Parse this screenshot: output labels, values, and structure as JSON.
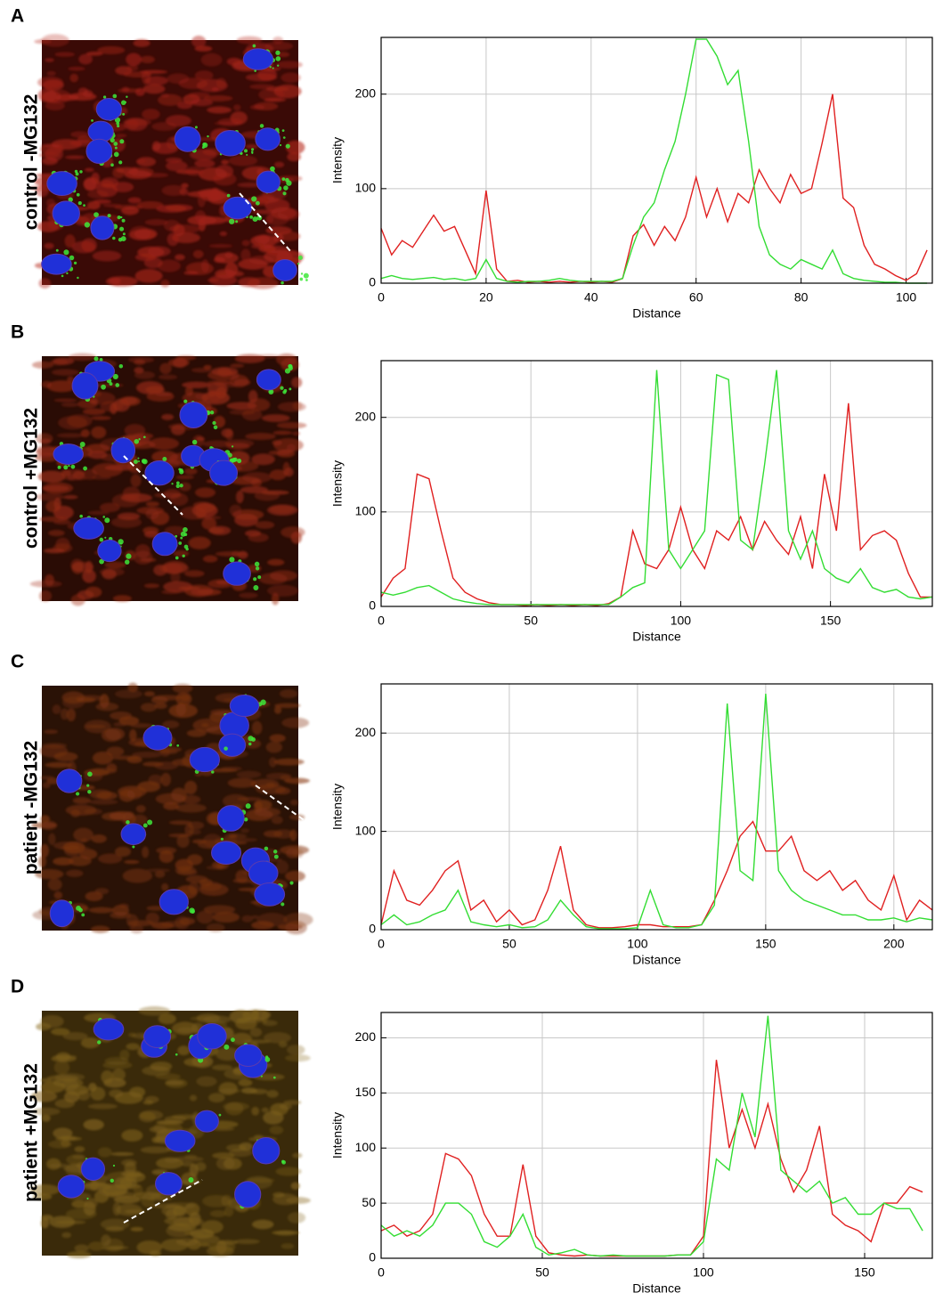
{
  "chart_data": [
    {
      "type": "line",
      "panel": "A",
      "sample": "control -MG132",
      "x_label": "Distance",
      "y_label": "Intensity",
      "x": [
        0,
        2,
        4,
        6,
        8,
        10,
        12,
        14,
        16,
        18,
        20,
        22,
        24,
        26,
        28,
        30,
        32,
        34,
        36,
        38,
        40,
        42,
        44,
        46,
        48,
        50,
        52,
        54,
        56,
        58,
        60,
        62,
        64,
        66,
        68,
        70,
        72,
        74,
        76,
        78,
        80,
        82,
        84,
        86,
        88,
        90,
        92,
        94,
        96,
        98,
        100,
        102,
        104
      ],
      "series": [
        {
          "color": "#e02020",
          "values": [
            58,
            30,
            45,
            38,
            55,
            72,
            55,
            60,
            35,
            10,
            98,
            15,
            2,
            3,
            1,
            2,
            1,
            2,
            1,
            2,
            1,
            2,
            1,
            5,
            50,
            62,
            40,
            60,
            45,
            70,
            112,
            70,
            100,
            65,
            95,
            85,
            120,
            100,
            85,
            115,
            95,
            100,
            148,
            200,
            90,
            80,
            40,
            20,
            15,
            8,
            3,
            10,
            35
          ]
        },
        {
          "color": "#33dd33",
          "values": [
            5,
            8,
            5,
            4,
            5,
            6,
            4,
            5,
            3,
            5,
            25,
            5,
            2,
            1,
            2,
            2,
            3,
            5,
            3,
            2,
            2,
            2,
            2,
            5,
            40,
            70,
            85,
            120,
            150,
            200,
            258,
            258,
            240,
            210,
            225,
            150,
            60,
            30,
            20,
            15,
            25,
            20,
            15,
            35,
            10,
            5,
            3,
            2,
            1,
            1,
            0,
            0,
            0
          ]
        }
      ],
      "xlim": [
        0,
        105
      ],
      "ylim": [
        0,
        260
      ],
      "xticks": [
        0,
        20,
        40,
        60,
        80,
        100
      ],
      "yticks": [
        0,
        100,
        200
      ],
      "grid": true
    },
    {
      "type": "line",
      "panel": "B",
      "sample": "control +MG132",
      "x_label": "Distance",
      "y_label": "Intensity",
      "x": [
        0,
        4,
        8,
        12,
        16,
        20,
        24,
        28,
        32,
        36,
        40,
        44,
        48,
        52,
        56,
        60,
        64,
        68,
        72,
        76,
        80,
        84,
        88,
        92,
        96,
        100,
        104,
        108,
        112,
        116,
        120,
        124,
        128,
        132,
        136,
        140,
        144,
        148,
        152,
        156,
        160,
        164,
        168,
        172,
        176,
        180,
        184
      ],
      "series": [
        {
          "color": "#e02020",
          "values": [
            10,
            30,
            40,
            140,
            135,
            80,
            30,
            15,
            8,
            4,
            2,
            2,
            1,
            2,
            1,
            2,
            1,
            2,
            1,
            3,
            10,
            80,
            45,
            40,
            60,
            105,
            60,
            40,
            80,
            70,
            95,
            60,
            90,
            70,
            55,
            95,
            40,
            140,
            80,
            215,
            60,
            75,
            80,
            70,
            35,
            10,
            10
          ]
        },
        {
          "color": "#33dd33",
          "values": [
            15,
            12,
            15,
            20,
            22,
            15,
            8,
            5,
            3,
            2,
            2,
            2,
            2,
            2,
            2,
            2,
            2,
            2,
            2,
            2,
            10,
            20,
            25,
            250,
            60,
            40,
            60,
            80,
            245,
            240,
            70,
            60,
            150,
            250,
            80,
            50,
            80,
            40,
            30,
            25,
            40,
            20,
            15,
            18,
            10,
            8,
            10
          ]
        }
      ],
      "xlim": [
        0,
        184
      ],
      "ylim": [
        0,
        260
      ],
      "xticks": [
        0,
        50,
        100,
        150
      ],
      "yticks": [
        0,
        100,
        200
      ],
      "grid": true
    },
    {
      "type": "line",
      "panel": "C",
      "sample": "patient -MG132",
      "x_label": "Distance",
      "y_label": "Intensity",
      "x": [
        0,
        5,
        10,
        15,
        20,
        25,
        30,
        35,
        40,
        45,
        50,
        55,
        60,
        65,
        70,
        75,
        80,
        85,
        90,
        95,
        100,
        105,
        110,
        115,
        120,
        125,
        130,
        135,
        140,
        145,
        150,
        155,
        160,
        165,
        170,
        175,
        180,
        185,
        190,
        195,
        200,
        205,
        210,
        215
      ],
      "series": [
        {
          "color": "#e02020",
          "values": [
            5,
            60,
            30,
            25,
            40,
            60,
            70,
            20,
            30,
            8,
            20,
            5,
            10,
            40,
            85,
            20,
            5,
            2,
            2,
            3,
            5,
            5,
            3,
            3,
            3,
            5,
            30,
            60,
            95,
            110,
            80,
            80,
            95,
            60,
            50,
            60,
            40,
            50,
            30,
            20,
            55,
            10,
            30,
            20
          ]
        },
        {
          "color": "#33dd33",
          "values": [
            5,
            15,
            5,
            8,
            15,
            20,
            40,
            8,
            5,
            3,
            5,
            2,
            3,
            10,
            30,
            15,
            3,
            1,
            1,
            1,
            2,
            40,
            5,
            2,
            2,
            5,
            25,
            230,
            60,
            50,
            240,
            60,
            40,
            30,
            25,
            20,
            15,
            15,
            10,
            10,
            12,
            8,
            12,
            10
          ]
        }
      ],
      "xlim": [
        0,
        215
      ],
      "ylim": [
        0,
        250
      ],
      "xticks": [
        0,
        50,
        100,
        150,
        200
      ],
      "yticks": [
        0,
        100,
        200
      ],
      "grid": true
    },
    {
      "type": "line",
      "panel": "D",
      "sample": "patient +MG132",
      "x_label": "Distance",
      "y_label": "Intensity",
      "x": [
        0,
        4,
        8,
        12,
        16,
        20,
        24,
        28,
        32,
        36,
        40,
        44,
        48,
        52,
        56,
        60,
        64,
        68,
        72,
        76,
        80,
        84,
        88,
        92,
        96,
        100,
        104,
        108,
        112,
        116,
        120,
        124,
        128,
        132,
        136,
        140,
        144,
        148,
        152,
        156,
        160,
        164,
        168
      ],
      "series": [
        {
          "color": "#e02020",
          "values": [
            25,
            30,
            20,
            25,
            40,
            95,
            90,
            75,
            40,
            20,
            20,
            85,
            20,
            5,
            3,
            2,
            3,
            2,
            2,
            2,
            2,
            2,
            2,
            3,
            3,
            20,
            180,
            100,
            135,
            100,
            140,
            90,
            60,
            80,
            120,
            40,
            30,
            25,
            15,
            50,
            50,
            65,
            60
          ]
        },
        {
          "color": "#33dd33",
          "values": [
            30,
            20,
            25,
            20,
            30,
            50,
            50,
            40,
            15,
            10,
            20,
            40,
            10,
            3,
            5,
            8,
            3,
            2,
            3,
            2,
            2,
            2,
            2,
            3,
            3,
            15,
            90,
            80,
            150,
            110,
            220,
            80,
            70,
            60,
            70,
            50,
            55,
            40,
            40,
            50,
            45,
            45,
            25
          ]
        }
      ],
      "xlim": [
        0,
        171
      ],
      "ylim": [
        0,
        223
      ],
      "xticks": [
        0,
        50,
        100,
        150
      ],
      "yticks": [
        0,
        50,
        100,
        150,
        200
      ],
      "grid": true
    }
  ]
}
